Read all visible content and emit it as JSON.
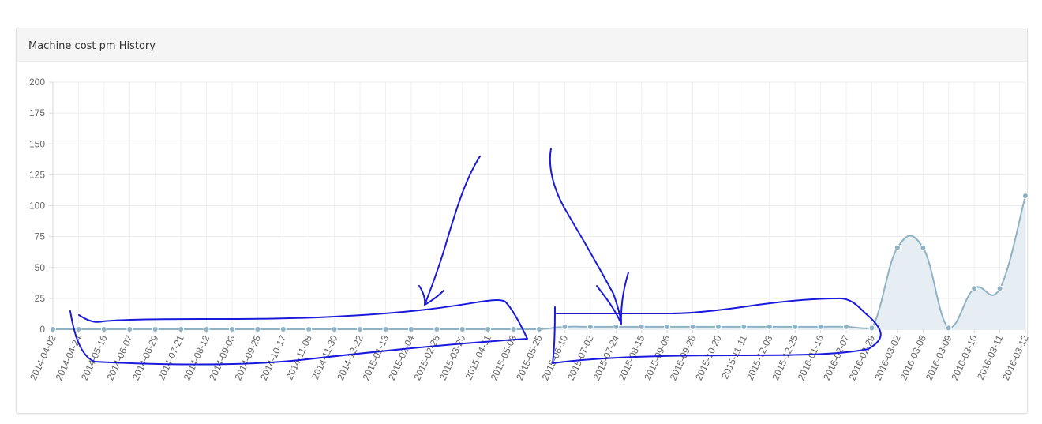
{
  "panel": {
    "title": "Machine cost pm History"
  },
  "chart_data": {
    "type": "area",
    "title": "Machine cost pm History",
    "xlabel": "",
    "ylabel": "",
    "ylim": [
      0,
      200
    ],
    "yticks": [
      0,
      25,
      50,
      75,
      100,
      125,
      150,
      175,
      200
    ],
    "grid": true,
    "legend": "none",
    "categories": [
      "2014-04-02",
      "2014-04-24",
      "2014-05-16",
      "2014-06-07",
      "2014-06-29",
      "2014-07-21",
      "2014-08-12",
      "2014-09-03",
      "2014-09-25",
      "2014-10-17",
      "2014-11-08",
      "2014-11-30",
      "2014-12-22",
      "2015-01-13",
      "2015-02-04",
      "2015-02-26",
      "2015-03-20",
      "2015-04-11",
      "2015-05-03",
      "2015-05-25",
      "2015-06-10",
      "2015-07-02",
      "2015-07-24",
      "2015-08-15",
      "2015-09-06",
      "2015-09-28",
      "2015-10-20",
      "2015-11-11",
      "2015-12-03",
      "2015-12-25",
      "2016-01-16",
      "2016-02-07",
      "2016-02-29",
      "2016-03-02",
      "2016-03-08",
      "2016-03-09",
      "2016-03-10",
      "2016-03-11",
      "2016-03-12"
    ],
    "series": [
      {
        "values": [
          0,
          0,
          0,
          0,
          0,
          0,
          0,
          0,
          0,
          0,
          0,
          0,
          0,
          0,
          0,
          0,
          0,
          0,
          0,
          0,
          2,
          2,
          2,
          2,
          2,
          2,
          2,
          2,
          2,
          2,
          2,
          2,
          1,
          66,
          66,
          1,
          33,
          33,
          108
        ],
        "color": "#8fb3c4",
        "fill": "#e6eef4"
      }
    ]
  }
}
